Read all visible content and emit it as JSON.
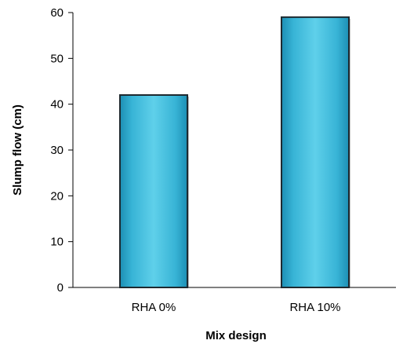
{
  "chart_data": {
    "type": "bar",
    "categories": [
      "RHA 0%",
      "RHA 10%"
    ],
    "values": [
      42,
      59
    ],
    "title": "",
    "xlabel": "Mix design",
    "ylabel": "Slump flow (cm)",
    "ylim": [
      0,
      60
    ],
    "yticks": [
      "0",
      "10",
      "20",
      "30",
      "40",
      "50",
      "60"
    ],
    "grid": false,
    "legend": "none",
    "colors": {
      "bar_fill_light": "#5fd0ea",
      "bar_fill_mid": "#38b4d6",
      "bar_fill_dark": "#1d8fb4",
      "bar_edge": "#1e2a30",
      "axis": "#000000"
    }
  }
}
